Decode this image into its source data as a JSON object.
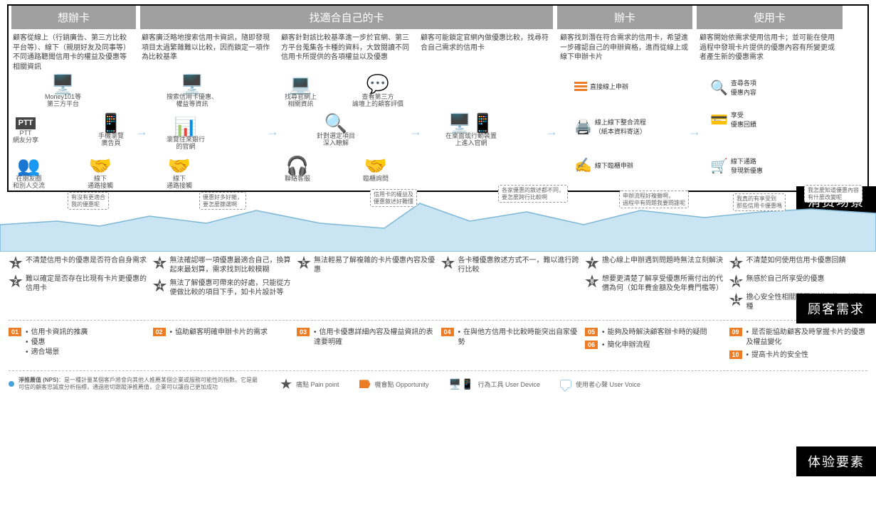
{
  "colors": {
    "header_bg": "#a0a0a0",
    "accent": "#ec7c26",
    "wave": "#c9e4f2",
    "wave_line": "#7eb8d6",
    "burst": "#555555",
    "black": "#000000"
  },
  "stages": {
    "s1": {
      "title": "想辦卡",
      "desc": "顧客從線上（行銷廣告、第三方比較平台等）、線下（親朋好友及同事等）不同通路聽聞信用卡的權益及優惠等相關資訊"
    },
    "s2": {
      "title": "找適合自己的卡",
      "d_a": "顧客廣泛略地搜索信用卡資訊，隨即發現項目太過繁雜難以比較，因而鎖定一項作為比較基準",
      "d_b": "顧客針對該比較基準進一步於官網、第三方平台蒐集各卡種的資料，大致閱讀不同信用卡所提供的各項權益以及優惠",
      "d_c": "顧客可能鎖定官網內做優惠比較，找尋符合自己需求的信用卡"
    },
    "s3": {
      "title": "辦卡",
      "desc": "顧客找到潛在符合需求的信用卡，希望進一步確認自己的申辦資格，進而從線上或線下申辦卡片"
    },
    "s4": {
      "title": "使用卡",
      "desc": "顧客開始依需求使用信用卡；並可能在使用過程中發現卡片提供的優惠內容有所變更或者產生新的優惠需求"
    }
  },
  "icons": {
    "money101": "Money101等\n第三方平台",
    "ptt": "PTT\n網友分享",
    "ptt_badge": "PTT",
    "mobile_ad": "手機瀏覽\n廣告頁",
    "friends": "在朋友圈\n和別人交流",
    "offline1": "線下\n通路接觸",
    "search_card": "搜索信用卡優惠、\n權益等資訊",
    "browse_bank": "瀏覽往來銀行\n的官網",
    "offline2": "線下\n通路接觸",
    "official_info": "找尋官網上\n相關資訊",
    "third_review": "查看第三方\n論壇上的顧客評價",
    "deep_study": "針對選定項目\n深入瞭解",
    "call_cs": "聯絡客服",
    "branch": "臨櫃詢問",
    "desktop_mobile": "在桌面或行動裝置\n上進入官網",
    "apply_online": "直接線上申辦",
    "apply_mixed": "線上線下整合流程\n（紙本資料寄送）",
    "apply_offline": "線下臨櫃申辦",
    "check_benefit": "查尋各項\n優惠內容",
    "enjoy": "享受\n優惠回饋",
    "discover_new": "線下通路\n發現新優惠"
  },
  "bubbles": {
    "b1": "有沒有更適合\n我的優惠呢",
    "b2": "優惠好多好雜，\n要怎麼篩選啊",
    "b3": "信用卡的權益及\n優惠敘述好難懂",
    "b4": "各家優惠的敘述都不同，\n要怎麼跨行比較啊",
    "b5": "申辦流程好複雜啊，\n過程中有問題我要問誰呢",
    "b6": "我真的有享受到\n那些信用卡優惠嗎",
    "b7": "我怎麼知道優惠內容\n有什麼改變呢"
  },
  "wave": {
    "points": [
      0,
      50,
      80,
      45,
      140,
      52,
      210,
      38,
      290,
      48,
      360,
      30,
      450,
      48,
      540,
      55,
      590,
      20,
      660,
      45,
      740,
      32,
      820,
      50,
      900,
      30,
      990,
      40,
      1070,
      32,
      1140,
      28,
      1231,
      34
    ]
  },
  "pain": {
    "p1": "不清楚信用卡的優惠是否符合自身需求",
    "p2": "難以確定是否存在比現有卡片更優惠的信用卡",
    "p3": "無法確認哪一項優惠最適合自己，換算起來最划算，需求找到比較模糊",
    "p4": "無法了解優惠可帶來的好處，只能從方便做比較的項目下手，如卡片設計等",
    "p5": "無法輕易了解複雜的卡片優惠內容及優惠",
    "p6": "各卡種優惠敘述方式不一，難以進行跨行比較",
    "p7": "擔心線上申辦遇到問題時無法立刻解決",
    "p8": "想要更清楚了解享受優惠所需付出的代價為何（如年費金額及免年費門檻等）",
    "p9": "不清楚如何使用信用卡優惠回饋",
    "p10": "無感於自己所享受的優惠",
    "p11": "擔心安全性相關問題而鮮少使用高級卡種"
  },
  "opp": {
    "o1": {
      "n": "01",
      "items": [
        "信用卡資訊的推廣",
        "優惠",
        "適合場景"
      ]
    },
    "o2": {
      "n": "02",
      "items": [
        "協助顧客明確申辦卡片的需求"
      ]
    },
    "o3": {
      "n": "03",
      "items": [
        "信用卡優惠詳細內容及權益資訊的表達要明確"
      ]
    },
    "o4": {
      "n": "04",
      "items": [
        "在與他方信用卡比較時能突出自家優勢"
      ]
    },
    "o5": {
      "n": "05",
      "items": [
        "能夠及時解決顧客辦卡時的疑問"
      ]
    },
    "o6": {
      "n": "06",
      "items": [
        "簡化申辦流程"
      ]
    },
    "o9": {
      "n": "09",
      "items": [
        "是否能協助顧客及時掌握卡片的優惠及權益變化"
      ]
    },
    "o10": {
      "n": "10",
      "items": [
        "提高卡片的安全性"
      ]
    }
  },
  "side": {
    "l1": "消费场景",
    "l2": "顾客需求",
    "l3": "体验要素"
  },
  "legend": {
    "nps_label": "淨推薦值 (NPS)",
    "nps_text": "：是一種計量某個客戶將會向其他人推薦某個企業或服務可能性的指數。它是最可信的顧客忠誠度分析指標，通過密切跟蹤淨推薦值，企業可以讓自己更加成功",
    "pain": "痛點 Pain point",
    "opp": "機會點 Opportunity",
    "device": "行為工具 User Device",
    "voice": "使用者心聲 User Voice"
  }
}
